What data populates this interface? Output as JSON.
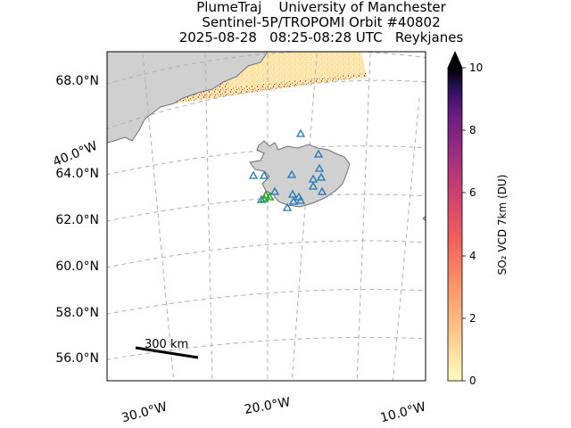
{
  "header": {
    "line1": "PlumeTraj    University of Manchester",
    "line2": "Sentinel-5P/TROPOMI Orbit #40802",
    "line3": "2025-08-28   08:25-08:28 UTC   Reykjanes"
  },
  "map": {
    "lat_labels": [
      "68.0°N",
      "64.0°N",
      "62.0°N",
      "60.0°N",
      "58.0°N",
      "56.0°N"
    ],
    "lon_labels_bottom": [
      "30.0°W",
      "20.0°W",
      "10.0°W"
    ],
    "lon_label_left": "40.0°W",
    "scale_bar_label": "300 km",
    "land_color": "#d0d0d0",
    "grid_color": "#b0b0b0",
    "volcano_marker_color": "#1f77b4",
    "active_vent_color": "#2ca02c"
  },
  "colorbar": {
    "label": "SO₂ VCD 7km (DU)",
    "ticks": [
      "0",
      "2",
      "4",
      "6",
      "8",
      "10"
    ],
    "min": 0,
    "max": 10,
    "cmap": "magma_r",
    "extend": "max"
  }
}
